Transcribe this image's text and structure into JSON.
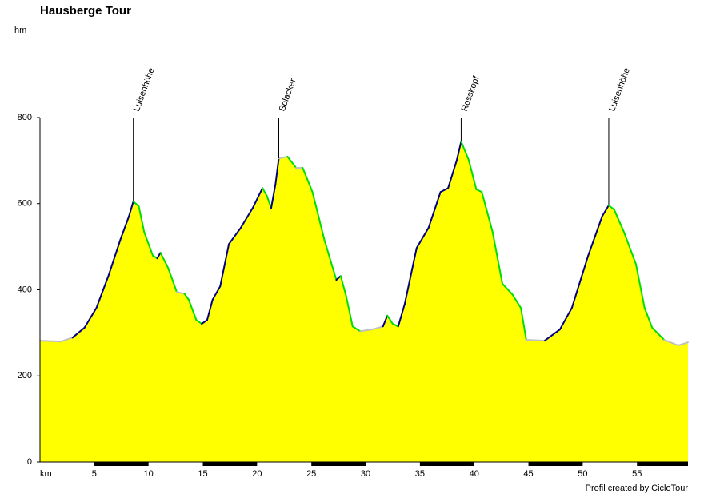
{
  "chart_data": {
    "type": "area",
    "title": "Hausberge Tour",
    "y_unit": "hm",
    "x_unit": "km",
    "footer": "Profil created by CicloTour",
    "x": [
      0,
      1.9,
      3.0,
      4.1,
      5.2,
      6.3,
      7.4,
      8.2,
      8.6,
      9.1,
      9.6,
      10.4,
      10.8,
      11.1,
      11.8,
      12.6,
      13.3,
      13.7,
      14.4,
      14.9,
      15.4,
      15.9,
      16.6,
      17.4,
      18.5,
      19.6,
      20.5,
      20.9,
      21.3,
      21.7,
      22.0,
      22.8,
      23.6,
      24.2,
      25.1,
      26.2,
      27.3,
      27.7,
      28.2,
      28.8,
      29.5,
      30.6,
      31.6,
      32.0,
      32.5,
      33.0,
      33.6,
      34.7,
      35.8,
      36.9,
      37.6,
      38.4,
      38.8,
      39.5,
      40.2,
      40.7,
      41.7,
      42.6,
      43.5,
      44.3,
      44.8,
      46.5,
      47.9,
      49.0,
      50.5,
      51.8,
      52.4,
      52.9,
      53.8,
      54.9,
      55.7,
      56.4,
      57.5,
      58.8,
      59.7
    ],
    "values": [
      282,
      280,
      289,
      312,
      358,
      432,
      516,
      571,
      605,
      594,
      534,
      479,
      473,
      486,
      451,
      395,
      391,
      377,
      330,
      321,
      330,
      377,
      408,
      506,
      544,
      590,
      636,
      618,
      590,
      646,
      705,
      709,
      683,
      683,
      627,
      516,
      423,
      432,
      386,
      315,
      304,
      308,
      315,
      340,
      321,
      315,
      367,
      497,
      544,
      627,
      636,
      701,
      744,
      701,
      633,
      627,
      534,
      414,
      390,
      358,
      284,
      282,
      308,
      358,
      479,
      571,
      596,
      586,
      534,
      460,
      358,
      312,
      284,
      271,
      278
    ],
    "fill_color": "#ffff00",
    "climb_color": "#000080",
    "descent_color": "#00dd00",
    "flat_color": "#c0c0c0",
    "annotations": [
      {
        "label": "Luisenhöhe",
        "x": 8.6
      },
      {
        "label": "Solacker",
        "x": 22.0
      },
      {
        "label": "Rosskopf",
        "x": 38.8
      },
      {
        "label": "Luisenhöhe",
        "x": 52.4
      }
    ],
    "xlim": [
      0,
      59.7
    ],
    "xticks": [
      5,
      10,
      15,
      20,
      25,
      30,
      35,
      40,
      45,
      50,
      55
    ],
    "ylim": [
      0,
      800
    ],
    "yticks": [
      0,
      200,
      400,
      600,
      800
    ]
  }
}
